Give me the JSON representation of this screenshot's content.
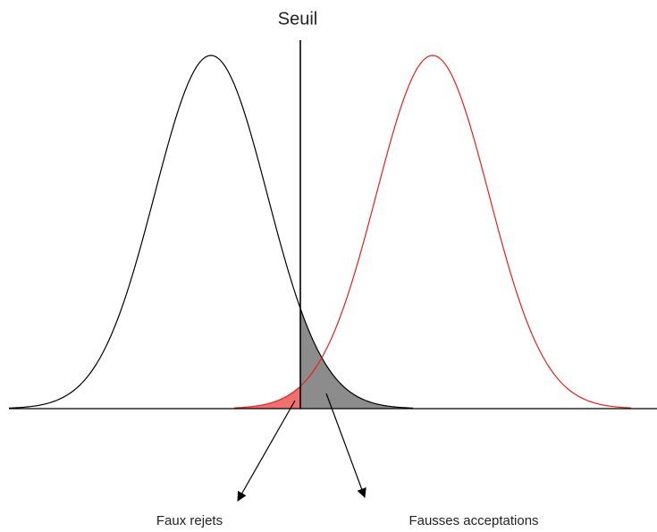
{
  "labels": {
    "threshold": "Seuil",
    "false_rejects": "Faux rejets",
    "false_accepts": "Fausses acceptations"
  }
}
